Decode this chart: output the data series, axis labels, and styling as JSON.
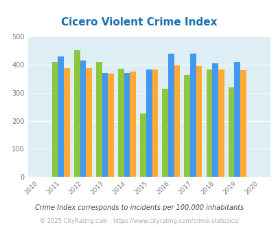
{
  "title": "Cicero Violent Crime Index",
  "title_color": "#1a6faf",
  "years": [
    2011,
    2012,
    2013,
    2014,
    2015,
    2016,
    2017,
    2018,
    2019
  ],
  "cicero": [
    410,
    450,
    410,
    385,
    225,
    315,
    362,
    382,
    318
  ],
  "illinois": [
    428,
    415,
    370,
    370,
    383,
    438,
    438,
    405,
    408
  ],
  "national": [
    388,
    388,
    367,
    376,
    383,
    397,
    394,
    381,
    379
  ],
  "cicero_color": "#8dc63f",
  "illinois_color": "#4499ee",
  "national_color": "#ffaa33",
  "bg_color": "#ddeef4",
  "fig_bg": "#ffffff",
  "xlim": [
    2009.5,
    2020.5
  ],
  "ylim": [
    0,
    500
  ],
  "yticks": [
    0,
    100,
    200,
    300,
    400,
    500
  ],
  "xlabel_years": [
    2010,
    2011,
    2012,
    2013,
    2014,
    2015,
    2016,
    2017,
    2018,
    2019,
    2020
  ],
  "footnote1": "Crime Index corresponds to incidents per 100,000 inhabitants",
  "footnote2": "© 2025 CityRating.com - https://www.cityrating.com/crime-statistics/",
  "footnote1_color": "#444444",
  "footnote2_color": "#aaaaaa",
  "bar_width": 0.27
}
